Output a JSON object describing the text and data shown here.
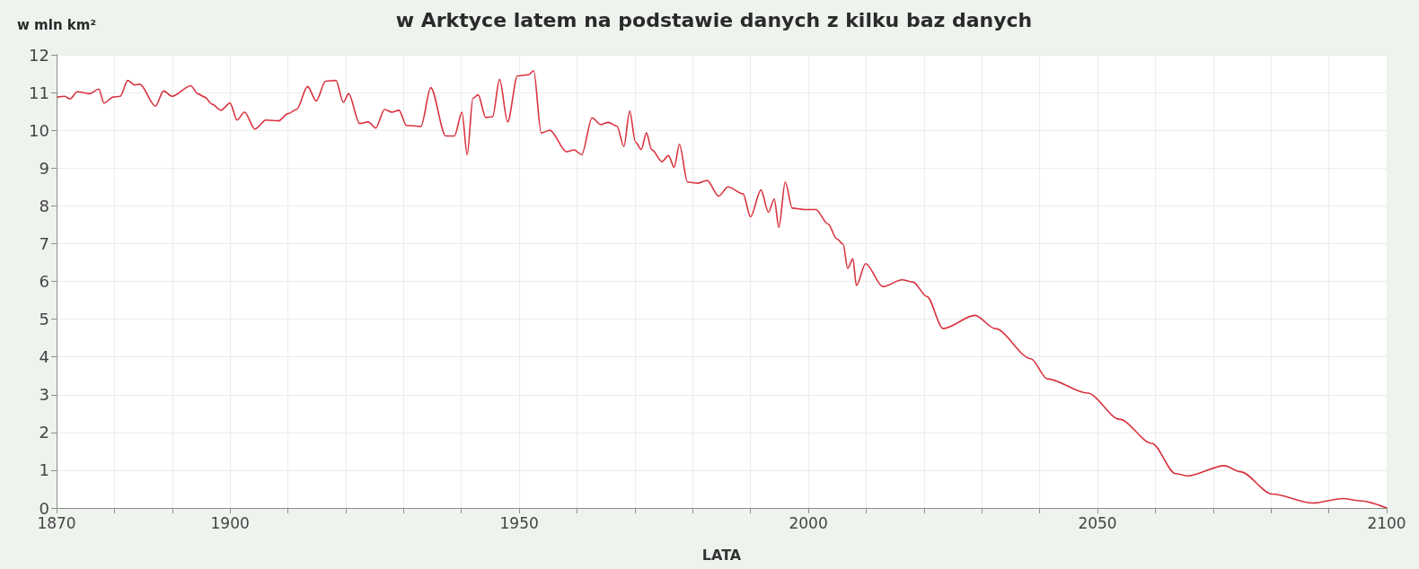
{
  "chart_data": {
    "type": "line",
    "title": "w Arktyce latem na podstawie danych z kilku baz danych",
    "ylabel": "w mln km²",
    "xlabel": "LATA",
    "x": [
      1870.2,
      1871.4,
      1872.3,
      1873.6,
      1875.7,
      1877.3,
      1878.2,
      1879.8,
      1881,
      1882.3,
      1883.5,
      1884.4,
      1887.1,
      1888.5,
      1890,
      1893.2,
      1894.4,
      1895.6,
      1896.9,
      1898.4,
      1900,
      1901.2,
      1902.5,
      1904.3,
      1906.2,
      1908.4,
      1910,
      1911.5,
      1913.4,
      1914.9,
      1916.5,
      1918.3,
      1919.6,
      1920.5,
      1922.4,
      1923.9,
      1925.2,
      1926.7,
      1928,
      1929.2,
      1930.5,
      1933,
      1934.7,
      1937.3,
      1938.8,
      1940.1,
      1941,
      1942,
      1942.9,
      1944.2,
      1945.4,
      1946.6,
      1948,
      1949.7,
      1951.6,
      1952.5,
      1953.8,
      1955.3,
      1958.2,
      1959.5,
      1960.8,
      1962.6,
      1964.1,
      1965.4,
      1966.9,
      1968.1,
      1969.1,
      1970.1,
      1971.1,
      1972,
      1972.9,
      1974.7,
      1975.8,
      1976.8,
      1977.7,
      1979.1,
      1980.9,
      1982.5,
      1984.5,
      1986.1,
      1988.7,
      1990,
      1991.8,
      1993.1,
      1994.1,
      1994.9,
      1996,
      1997.2,
      1999.5,
      2001.3,
      2003.4,
      2004.9,
      2006,
      2006.8,
      2007.7,
      2008.3,
      2009.9,
      2012.9,
      2016.2,
      2018.1,
      2020.5,
      2023.3,
      2028.8,
      2032.3,
      2038.5,
      2041.3,
      2048.3,
      2053.8,
      2059.4,
      2063.5,
      2065.6,
      2071.9,
      2074.7,
      2080.2,
      2087.2,
      2092.4,
      2095.5,
      2100
    ],
    "series": [
      {
        "color": "#d8333f",
        "values": [
          10.88,
          10.9,
          10.83,
          11.02,
          10.97,
          11.09,
          10.72,
          10.88,
          10.9,
          11.32,
          11.2,
          11.22,
          10.64,
          11.04,
          10.9,
          11.18,
          10.97,
          10.88,
          10.69,
          10.53,
          10.72,
          10.27,
          10.48,
          10.03,
          10.27,
          10.25,
          10.44,
          10.55,
          11.16,
          10.78,
          11.3,
          11.32,
          10.74,
          10.97,
          10.18,
          10.22,
          10.06,
          10.55,
          10.48,
          10.53,
          10.13,
          10.1,
          11.13,
          9.85,
          9.85,
          10.48,
          9.35,
          10.85,
          10.94,
          10.34,
          10.36,
          11.35,
          10.22,
          11.44,
          11.47,
          11.58,
          9.93,
          10.0,
          9.43,
          9.48,
          9.35,
          10.33,
          10.15,
          10.21,
          10.11,
          9.57,
          10.51,
          9.69,
          9.49,
          9.93,
          9.49,
          9.17,
          9.33,
          9.02,
          9.63,
          8.63,
          8.6,
          8.67,
          8.26,
          8.5,
          8.32,
          7.71,
          8.42,
          7.83,
          8.18,
          7.43,
          8.63,
          7.94,
          7.9,
          7.9,
          7.52,
          7.13,
          6.99,
          6.34,
          6.6,
          5.89,
          6.47,
          5.86,
          6.04,
          5.98,
          5.6,
          4.75,
          5.1,
          4.75,
          3.95,
          3.42,
          3.04,
          2.35,
          1.71,
          0.91,
          0.85,
          1.12,
          0.96,
          0.37,
          0.13,
          0.25,
          0.19,
          0.0
        ]
      }
    ],
    "xlim": [
      1870,
      2100
    ],
    "xticks": [
      1870,
      {
        "value": 1880,
        "label": null
      },
      {
        "value": 1890,
        "label": null
      },
      1900,
      {
        "value": 1910,
        "label": null
      },
      {
        "value": 1920,
        "label": null
      },
      {
        "value": 1930,
        "label": null
      },
      {
        "value": 1940,
        "label": null
      },
      1950,
      {
        "value": 1960,
        "label": null
      },
      {
        "value": 1970,
        "label": null
      },
      {
        "value": 1980,
        "label": null
      },
      {
        "value": 1990,
        "label": null
      },
      2000,
      {
        "value": 2010,
        "label": null
      },
      {
        "value": 2020,
        "label": null
      },
      {
        "value": 2030,
        "label": null
      },
      {
        "value": 2040,
        "label": null
      },
      2050,
      {
        "value": 2060,
        "label": null
      },
      {
        "value": 2070,
        "label": null
      },
      {
        "value": 2080,
        "label": null
      },
      {
        "value": 2090,
        "label": null
      },
      2100
    ],
    "ylim": [
      0,
      12
    ],
    "yticks": [
      0,
      1,
      2,
      3,
      4,
      5,
      6,
      7,
      8,
      9,
      10,
      11,
      12
    ],
    "grid": true,
    "marker": "none",
    "line_style": "solid"
  }
}
